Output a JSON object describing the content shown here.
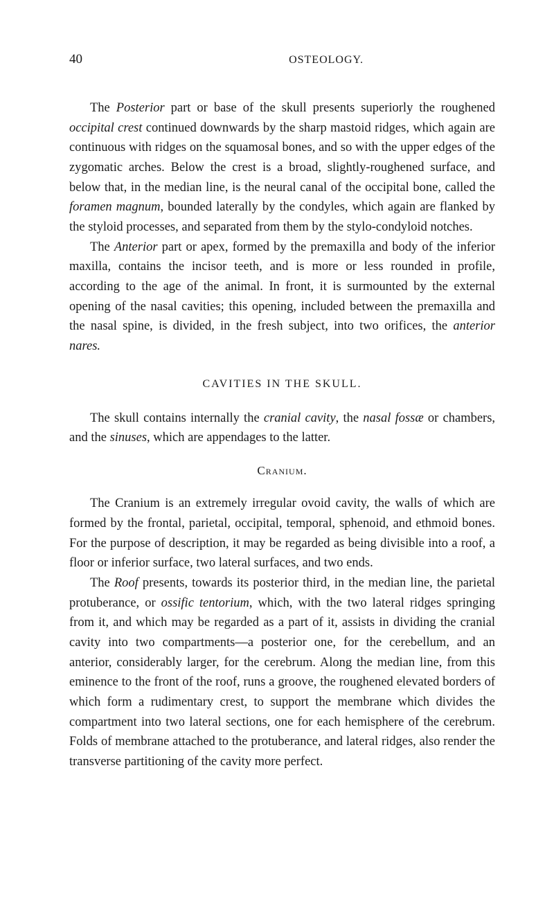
{
  "page": {
    "number": "40",
    "runningHead": "OSTEOLOGY."
  },
  "paragraphs": {
    "p1_a": "The ",
    "p1_i1": "Posterior",
    "p1_b": " part or base of the skull presents superiorly the roughened ",
    "p1_i2": "occipital crest",
    "p1_c": " continued downwards by the sharp mastoid ridges, which again are continuous with ridges on the squamosal bones, and so with the upper edges of the zygomatic arches. Below the crest is a broad, slightly-roughened surface, and below that, in the median line, is the neural canal of the occipital bone, called the ",
    "p1_i3": "foramen magnum",
    "p1_d": ", bounded laterally by the condyles, which again are flanked by the styloid processes, and separated from them by the stylo-condyloid notches.",
    "p2_a": "The ",
    "p2_i1": "Anterior",
    "p2_b": " part or apex, formed by the premaxilla and body of the inferior maxilla, contains the incisor teeth, and is more or less rounded in profile, according to the age of the animal. In front, it is surmounted by the external opening of the nasal cavities; this opening, included between the premaxilla and the nasal spine, is divided, in the fresh subject, into two orifices, the ",
    "p2_i2": "anterior nares.",
    "sectionHeading": "CAVITIES IN THE SKULL.",
    "p3_a": "The skull contains internally the ",
    "p3_i1": "cranial cavity",
    "p3_b": ", the ",
    "p3_i2": "nasal fossæ",
    "p3_c": " or chambers, and the ",
    "p3_i3": "sinuses",
    "p3_d": ", which are appendages to the latter.",
    "subheading": "Cranium.",
    "p4": "The Cranium is an extremely irregular ovoid cavity, the walls of which are formed by the frontal, parietal, occipital, temporal, sphenoid, and ethmoid bones. For the purpose of description, it may be regarded as being divisible into a roof, a floor or inferior surface, two lateral surfaces, and two ends.",
    "p5_a": "The ",
    "p5_i1": "Roof",
    "p5_b": " presents, towards its posterior third, in the median line, the parietal protuberance, or ",
    "p5_i2": "ossific tentorium",
    "p5_c": ", which, with the two lateral ridges springing from it, and which may be regarded as a part of it, assists in dividing the cranial cavity into two compartments—a posterior one, for the cerebellum, and an anterior, considerably larger, for the cerebrum. Along the median line, from this eminence to the front of the roof, runs a groove, the roughened elevated borders of which form a rudimentary crest, to support the membrane which divides the compartment into two lateral sections, one for each hemisphere of the cerebrum. Folds of membrane attached to the protuberance, and lateral ridges, also render the transverse partitioning of the cavity more perfect."
  }
}
